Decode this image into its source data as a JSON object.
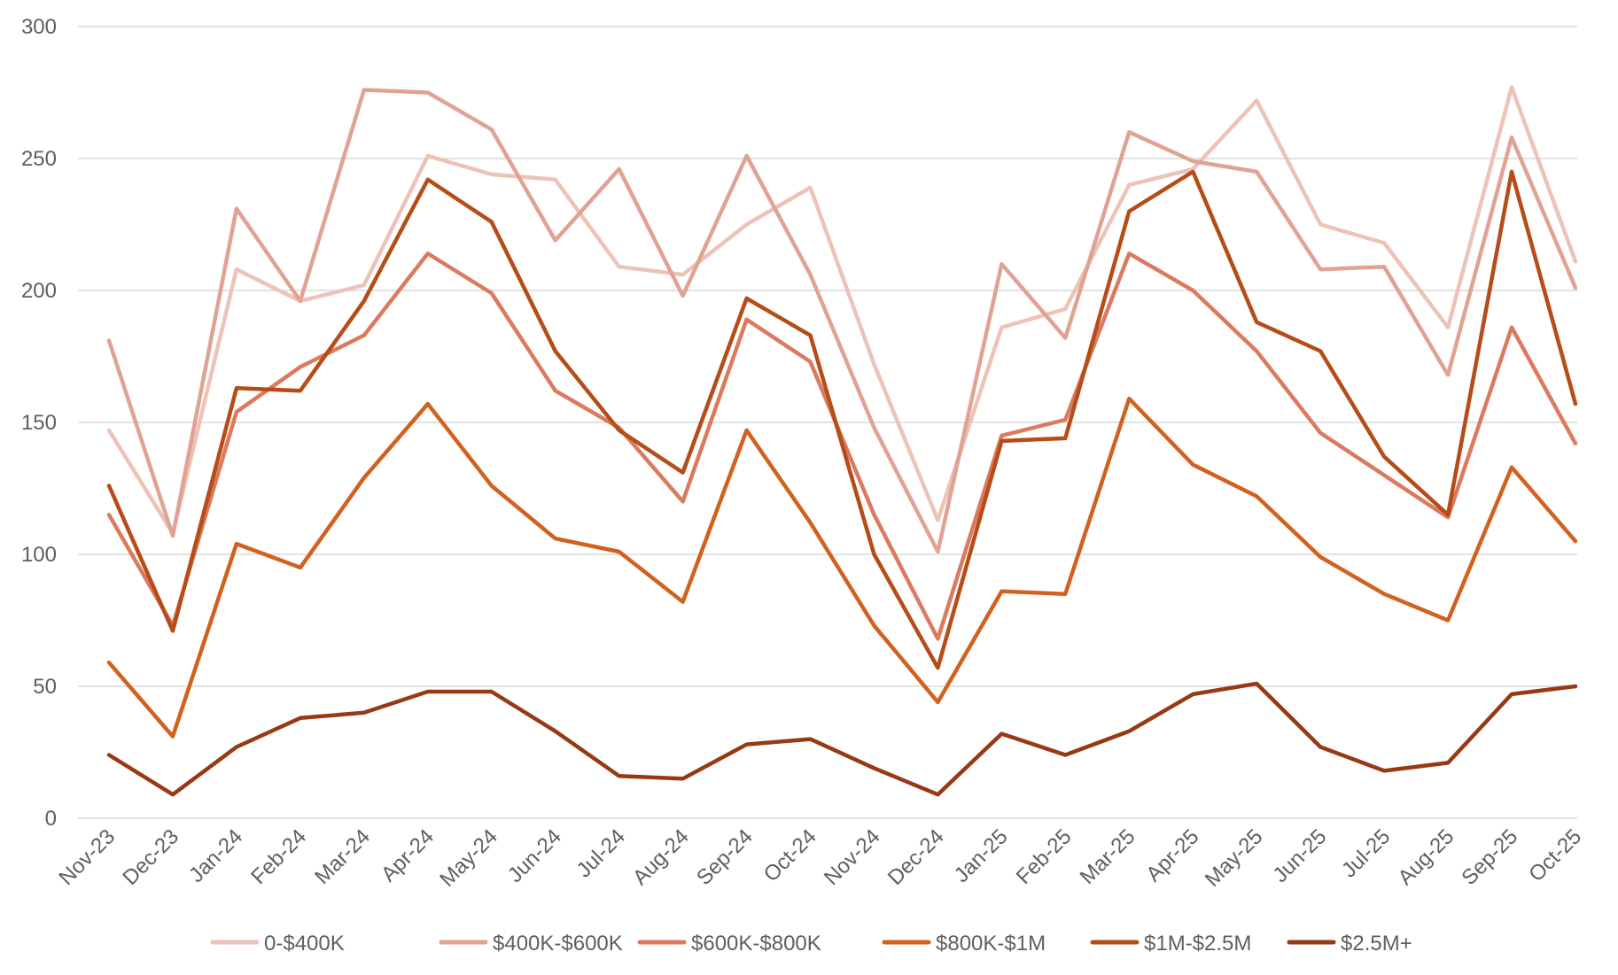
{
  "chart_data": {
    "type": "line",
    "categories": [
      "Nov-23",
      "Dec-23",
      "Jan-24",
      "Feb-24",
      "Mar-24",
      "Apr-24",
      "May-24",
      "Jun-24",
      "Jul-24",
      "Aug-24",
      "Sep-24",
      "Oct-24",
      "Nov-24",
      "Dec-24",
      "Jan-25",
      "Feb-25",
      "Mar-25",
      "Apr-25",
      "May-25",
      "Jun-25",
      "Jul-25",
      "Aug-25",
      "Sep-25",
      "Oct-25"
    ],
    "y_ticks": [
      0,
      50,
      100,
      150,
      200,
      250,
      300
    ],
    "ylim": [
      0,
      300
    ],
    "grid": "horizontal",
    "legend_position": "bottom",
    "series": [
      {
        "name": "0-$400K",
        "color": "#edc3b8",
        "values": [
          147,
          108,
          208,
          196,
          202,
          251,
          244,
          242,
          209,
          206,
          225,
          239,
          172,
          113,
          186,
          193,
          240,
          246,
          272,
          225,
          218,
          186,
          277,
          211
        ]
      },
      {
        "name": "$400K-$600K",
        "color": "#e0a294",
        "values": [
          181,
          107,
          231,
          196,
          276,
          275,
          261,
          219,
          246,
          198,
          251,
          206,
          148,
          101,
          210,
          182,
          260,
          249,
          245,
          208,
          209,
          168,
          258,
          201
        ]
      },
      {
        "name": "$600K-$800K",
        "color": "#db7a5e",
        "values": [
          115,
          73,
          154,
          171,
          183,
          214,
          199,
          162,
          148,
          120,
          189,
          173,
          115,
          68,
          145,
          151,
          214,
          200,
          177,
          146,
          130,
          114,
          186,
          142
        ]
      },
      {
        "name": "$800K-$1M",
        "color": "#d2611f",
        "values": [
          59,
          31,
          104,
          95,
          129,
          157,
          126,
          106,
          101,
          82,
          147,
          112,
          73,
          44,
          86,
          85,
          159,
          134,
          122,
          99,
          85,
          75,
          133,
          105
        ]
      },
      {
        "name": "$1M-$2.5M",
        "color": "#b64c17",
        "values": [
          126,
          71,
          163,
          162,
          196,
          242,
          226,
          177,
          147,
          131,
          197,
          183,
          100,
          57,
          143,
          144,
          230,
          245,
          188,
          177,
          137,
          115,
          245,
          157
        ]
      },
      {
        "name": "$2.5M+",
        "color": "#963a14",
        "values": [
          24,
          9,
          27,
          38,
          40,
          48,
          48,
          33,
          16,
          15,
          28,
          30,
          19,
          9,
          32,
          24,
          33,
          47,
          51,
          27,
          18,
          21,
          47,
          50
        ]
      }
    ]
  }
}
